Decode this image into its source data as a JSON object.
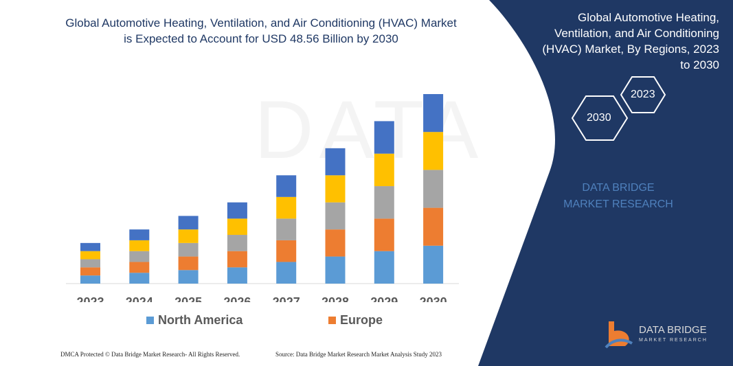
{
  "title": "Global Automotive Heating, Ventilation, and Air Conditioning (HVAC) Market is Expected to Account for USD 48.56 Billion by 2030",
  "side_panel": {
    "title": "Global Automotive Heating, Ventilation, and Air Conditioning (HVAC) Market, By Regions, 2023 to 2030",
    "hex_start": "2023",
    "hex_end": "2030",
    "brand": "DATA BRIDGE MARKET RESEARCH",
    "logo_text": "DATA BRIDGE",
    "logo_subtext": "MARKET RESEARCH",
    "bg_color": "#1f3864"
  },
  "footer": {
    "dmca": "DMCA Protected © Data Bridge Market Research- All Rights Reserved.",
    "source": "Source: Data Bridge Market Research Market Analysis Study 2023"
  },
  "chart_data": {
    "type": "bar",
    "stacked": true,
    "categories": [
      "2023",
      "2024",
      "2025",
      "2026",
      "2027",
      "2028",
      "2029",
      "2030"
    ],
    "series": [
      {
        "name": "North America",
        "color": "#5b9bd5",
        "values": [
          2.4,
          3.2,
          4,
          4.8,
          6.4,
          8,
          9.6,
          11.2
        ]
      },
      {
        "name": "Europe",
        "color": "#ed7d31",
        "values": [
          2.4,
          3.2,
          4,
          4.8,
          6.4,
          8,
          9.6,
          11.2
        ]
      },
      {
        "color": "#a5a5a5",
        "values": [
          2.4,
          3.2,
          4,
          4.8,
          6.4,
          8,
          9.6,
          11.2
        ]
      },
      {
        "color": "#ffc000",
        "values": [
          2.4,
          3.2,
          4,
          4.8,
          6.4,
          8,
          9.6,
          11.2
        ]
      },
      {
        "color": "#4472c4",
        "values": [
          2.4,
          3.2,
          4,
          4.8,
          6.4,
          8,
          9.6,
          11.2
        ]
      }
    ],
    "legend": [
      "North America",
      "Europe"
    ],
    "legend_position": "bottom",
    "grid": false,
    "y_axis_visible": false,
    "ylim": [
      0,
      56
    ]
  }
}
